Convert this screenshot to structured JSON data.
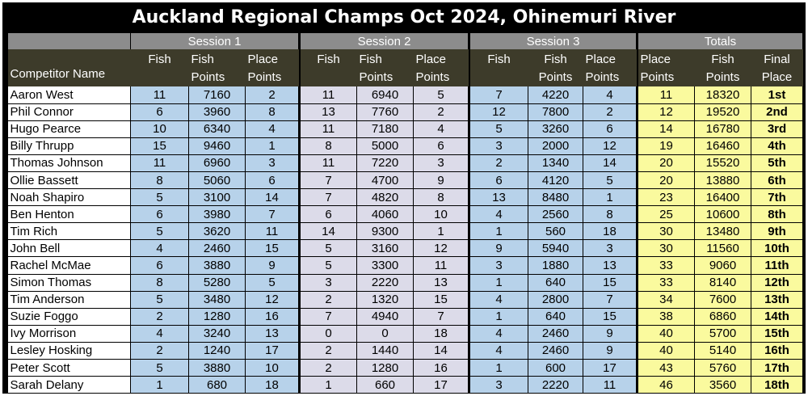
{
  "title": "Auckland Regional Champs Oct 2024, Ohinemuri River",
  "groups": {
    "session1": "Session 1",
    "session2": "Session 2",
    "session3": "Session 3",
    "totals": "Totals"
  },
  "headers": {
    "name": "Competitor Name",
    "fish": "Fish",
    "fish_points": "Fish Points",
    "place_points": "Place Points",
    "final_place": "Final Place"
  },
  "colors": {
    "session_blue": "#b7d2ea",
    "session_lavender": "#dcdbe9",
    "totals_yellow": "#fafa9e",
    "header_dark": "#3d3b2a",
    "group_gray": "#8c8c8c"
  },
  "rows": [
    {
      "name": "Aaron West",
      "s1": [
        "11",
        "7160",
        "2"
      ],
      "s2": [
        "11",
        "6940",
        "5"
      ],
      "s3": [
        "7",
        "4220",
        "4"
      ],
      "tot": [
        "11",
        "18320",
        "1st"
      ]
    },
    {
      "name": "Phil Connor",
      "s1": [
        "6",
        "3960",
        "8"
      ],
      "s2": [
        "13",
        "7760",
        "2"
      ],
      "s3": [
        "12",
        "7800",
        "2"
      ],
      "tot": [
        "12",
        "19520",
        "2nd"
      ]
    },
    {
      "name": "Hugo Pearce",
      "s1": [
        "10",
        "6340",
        "4"
      ],
      "s2": [
        "11",
        "7180",
        "4"
      ],
      "s3": [
        "5",
        "3260",
        "6"
      ],
      "tot": [
        "14",
        "16780",
        "3rd"
      ]
    },
    {
      "name": "Billy Thrupp",
      "s1": [
        "15",
        "9460",
        "1"
      ],
      "s2": [
        "8",
        "5000",
        "6"
      ],
      "s3": [
        "3",
        "2000",
        "12"
      ],
      "tot": [
        "19",
        "16460",
        "4th"
      ]
    },
    {
      "name": "Thomas Johnson",
      "s1": [
        "11",
        "6960",
        "3"
      ],
      "s2": [
        "11",
        "7220",
        "3"
      ],
      "s3": [
        "2",
        "1340",
        "14"
      ],
      "tot": [
        "20",
        "15520",
        "5th"
      ]
    },
    {
      "name": "Ollie Bassett",
      "s1": [
        "8",
        "5060",
        "6"
      ],
      "s2": [
        "7",
        "4700",
        "9"
      ],
      "s3": [
        "6",
        "4120",
        "5"
      ],
      "tot": [
        "20",
        "13880",
        "6th"
      ]
    },
    {
      "name": "Noah Shapiro",
      "s1": [
        "5",
        "3100",
        "14"
      ],
      "s2": [
        "7",
        "4820",
        "8"
      ],
      "s3": [
        "13",
        "8480",
        "1"
      ],
      "tot": [
        "23",
        "16400",
        "7th"
      ]
    },
    {
      "name": "Ben Henton",
      "s1": [
        "6",
        "3980",
        "7"
      ],
      "s2": [
        "6",
        "4060",
        "10"
      ],
      "s3": [
        "4",
        "2560",
        "8"
      ],
      "tot": [
        "25",
        "10600",
        "8th"
      ]
    },
    {
      "name": "Tim Rich",
      "s1": [
        "5",
        "3620",
        "11"
      ],
      "s2": [
        "14",
        "9300",
        "1"
      ],
      "s3": [
        "1",
        "560",
        "18"
      ],
      "tot": [
        "30",
        "13480",
        "9th"
      ]
    },
    {
      "name": "John Bell",
      "s1": [
        "4",
        "2460",
        "15"
      ],
      "s2": [
        "5",
        "3160",
        "12"
      ],
      "s3": [
        "9",
        "5940",
        "3"
      ],
      "tot": [
        "30",
        "11560",
        "10th"
      ]
    },
    {
      "name": "Rachel McMae",
      "s1": [
        "6",
        "3880",
        "9"
      ],
      "s2": [
        "5",
        "3300",
        "11"
      ],
      "s3": [
        "3",
        "1880",
        "13"
      ],
      "tot": [
        "33",
        "9060",
        "11th"
      ]
    },
    {
      "name": "Simon Thomas",
      "s1": [
        "8",
        "5280",
        "5"
      ],
      "s2": [
        "3",
        "2220",
        "13"
      ],
      "s3": [
        "1",
        "640",
        "15"
      ],
      "tot": [
        "33",
        "8140",
        "12th"
      ]
    },
    {
      "name": "Tim Anderson",
      "s1": [
        "5",
        "3480",
        "12"
      ],
      "s2": [
        "2",
        "1320",
        "15"
      ],
      "s3": [
        "4",
        "2800",
        "7"
      ],
      "tot": [
        "34",
        "7600",
        "13th"
      ]
    },
    {
      "name": "Suzie Foggo",
      "s1": [
        "2",
        "1280",
        "16"
      ],
      "s2": [
        "7",
        "4940",
        "7"
      ],
      "s3": [
        "1",
        "640",
        "15"
      ],
      "tot": [
        "38",
        "6860",
        "14th"
      ]
    },
    {
      "name": "Ivy Morrison",
      "s1": [
        "4",
        "3240",
        "13"
      ],
      "s2": [
        "0",
        "0",
        "18"
      ],
      "s3": [
        "4",
        "2460",
        "9"
      ],
      "tot": [
        "40",
        "5700",
        "15th"
      ]
    },
    {
      "name": "Lesley Hosking",
      "s1": [
        "2",
        "1240",
        "17"
      ],
      "s2": [
        "2",
        "1440",
        "14"
      ],
      "s3": [
        "4",
        "2460",
        "9"
      ],
      "tot": [
        "40",
        "5140",
        "16th"
      ]
    },
    {
      "name": "Peter Scott",
      "s1": [
        "5",
        "3880",
        "10"
      ],
      "s2": [
        "2",
        "1280",
        "16"
      ],
      "s3": [
        "1",
        "600",
        "17"
      ],
      "tot": [
        "43",
        "5760",
        "17th"
      ]
    },
    {
      "name": "Sarah Delany",
      "s1": [
        "1",
        "680",
        "18"
      ],
      "s2": [
        "1",
        "660",
        "17"
      ],
      "s3": [
        "3",
        "2220",
        "11"
      ],
      "tot": [
        "46",
        "3560",
        "18th"
      ]
    }
  ]
}
